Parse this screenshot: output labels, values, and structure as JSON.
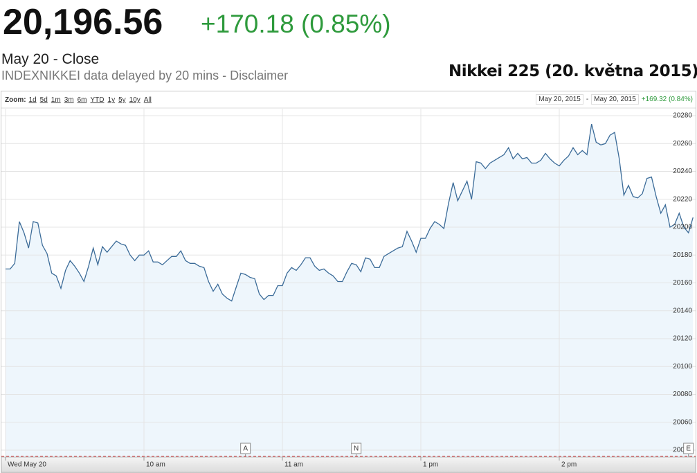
{
  "header": {
    "price": "20,196.56",
    "change": "+170.18 (0.85%)",
    "status": "May 20 - Close",
    "source": "INDEXNIKKEI data delayed by 20 mins - Disclaimer",
    "caption": "Nikkei 225 (20. května 2015)"
  },
  "toolbar": {
    "zoom_label": "Zoom:",
    "zoom_options": [
      "1d",
      "5d",
      "1m",
      "3m",
      "6m",
      "YTD",
      "1y",
      "5y",
      "10y",
      "All"
    ],
    "range_start": "May 20, 2015",
    "range_sep": "-",
    "range_end": "May 20, 2015",
    "range_change": "+169.32 (0.84%)"
  },
  "chart_data": {
    "type": "area",
    "color": "#3b6b98",
    "fill": "#eef6fc",
    "grid": true,
    "x": [
      0,
      2,
      4,
      6,
      8,
      10,
      12,
      14,
      16,
      18,
      20,
      22,
      24,
      26,
      28,
      30,
      32,
      34,
      36,
      38,
      40,
      42,
      44,
      46,
      48,
      50,
      52,
      54,
      56,
      58,
      60,
      62,
      64,
      66,
      68,
      70,
      72,
      74,
      76,
      78,
      80,
      82,
      84,
      86,
      88,
      90,
      92,
      94,
      96,
      98,
      100,
      102,
      104,
      106,
      108,
      110,
      112,
      114,
      116,
      118,
      120,
      122,
      124,
      126,
      128,
      130,
      132,
      134,
      136,
      138,
      140,
      142,
      144,
      146,
      148,
      150,
      152,
      154,
      156,
      158,
      160,
      162,
      164,
      166,
      168,
      170,
      172,
      174,
      176,
      178,
      180,
      182,
      184,
      186,
      188,
      190,
      192,
      194,
      196,
      198,
      200,
      202,
      204,
      206,
      208,
      210,
      212,
      214,
      216,
      218,
      220,
      222,
      224,
      226,
      228,
      230,
      232,
      234,
      236,
      238,
      240,
      242,
      244,
      246,
      248,
      250,
      252,
      254,
      256,
      258,
      260,
      262,
      264,
      266,
      268,
      270,
      272,
      274,
      276,
      278,
      280,
      282,
      284,
      286,
      288,
      290,
      292,
      294,
      296,
      298
    ],
    "values": [
      20170,
      20170,
      20174,
      20204,
      20196,
      20185,
      20204,
      20203,
      20187,
      20181,
      20167,
      20165,
      20156,
      20169,
      20176,
      20172,
      20167,
      20161,
      20172,
      20185,
      20173,
      20186,
      20182,
      20186,
      20190,
      20188,
      20187,
      20180,
      20176,
      20180,
      20180,
      20183,
      20175,
      20175,
      20173,
      20176,
      20179,
      20179,
      20183,
      20176,
      20174,
      20174,
      20172,
      20171,
      20161,
      20154,
      20159,
      20152,
      20149,
      20147,
      20157,
      20167,
      20166,
      20164,
      20163,
      20152,
      20148,
      20151,
      20151,
      20158,
      20158,
      20167,
      20171,
      20169,
      20173,
      20178,
      20178,
      20172,
      20169,
      20170,
      20167,
      20165,
      20161,
      20161,
      20168,
      20174,
      20173,
      20168,
      20178,
      20177,
      20171,
      20171,
      20179,
      20181,
      20183,
      20185,
      20186,
      20197,
      20190,
      20182,
      20192,
      20192,
      20199,
      20204,
      20202,
      20199,
      20217,
      20232,
      20219,
      20226,
      20233,
      20220,
      20247,
      20246,
      20242,
      20246,
      20248,
      20250,
      20252,
      20257,
      20249,
      20253,
      20249,
      20250,
      20246,
      20246,
      20248,
      20253,
      20249,
      20246,
      20244,
      20248,
      20251,
      20257,
      20252,
      20255,
      20252,
      20274,
      20261,
      20259,
      20260,
      20266,
      20268,
      20249,
      20223,
      20230,
      20222,
      20221,
      20224,
      20235,
      20236,
      20222,
      20210,
      20216,
      20200,
      20202,
      20210,
      20200,
      20196,
      20207
    ],
    "xlim": [
      0,
      300
    ],
    "xticks": [
      {
        "value": 0,
        "label": "Wed May 20"
      },
      {
        "value": 60,
        "label": "10 am"
      },
      {
        "value": 120,
        "label": "11 am"
      },
      {
        "value": 180,
        "label": "1 pm"
      },
      {
        "value": 240,
        "label": "2 pm"
      }
    ],
    "ylim": [
      20035,
      20285
    ],
    "yticks": [
      20040,
      20060,
      20080,
      20100,
      20120,
      20140,
      20160,
      20180,
      20200,
      20220,
      20240,
      20260,
      20280
    ],
    "annotations": [
      {
        "label": "A",
        "x": 104
      },
      {
        "label": "N",
        "x": 152
      },
      {
        "label": "E",
        "x": 296
      }
    ]
  }
}
